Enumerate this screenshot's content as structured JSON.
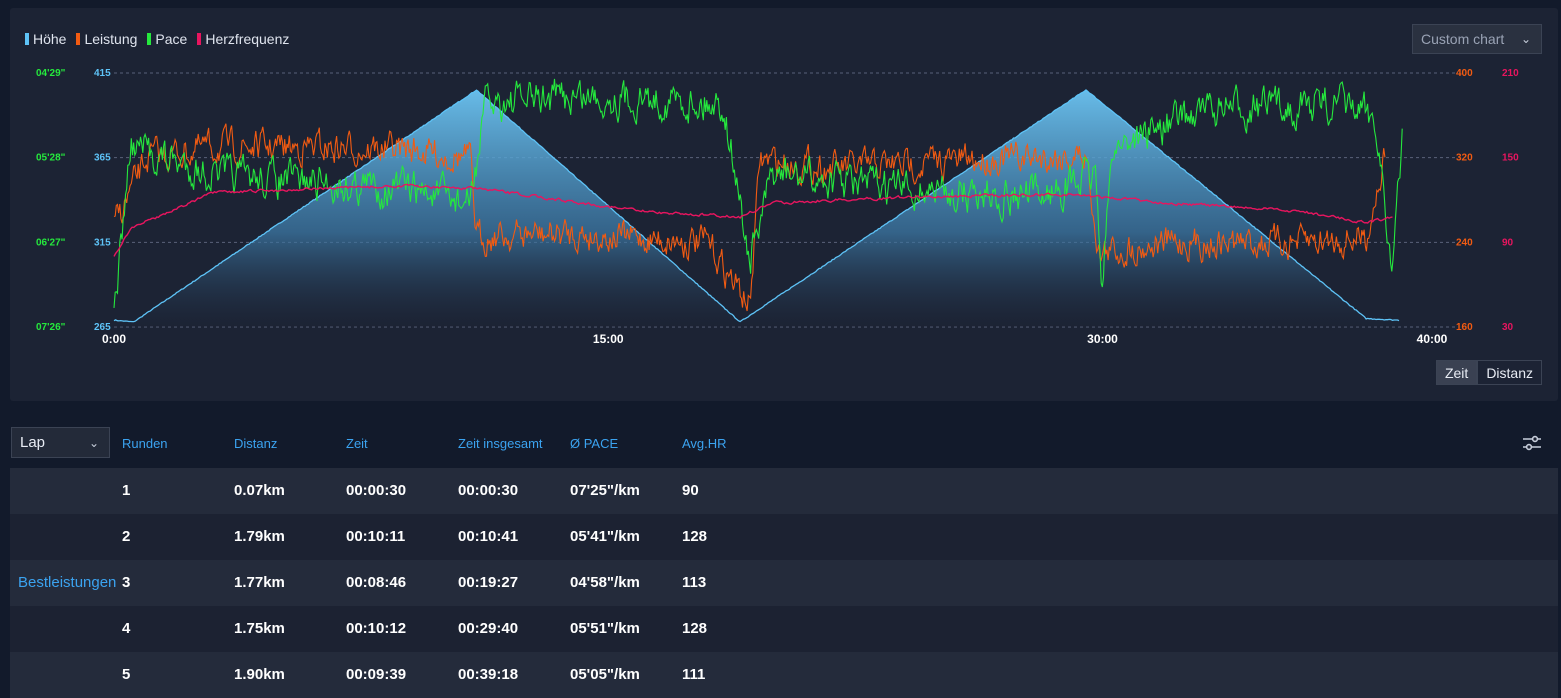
{
  "legend": [
    {
      "label": "Höhe",
      "color": "#5ec3f7"
    },
    {
      "label": "Leistung",
      "color": "#f25b12"
    },
    {
      "label": "Pace",
      "color": "#25e83d"
    },
    {
      "label": "Herzfrequenz",
      "color": "#e8155f"
    }
  ],
  "custom_chart": {
    "label": "Custom chart"
  },
  "toggle": {
    "zeit": "Zeit",
    "distanz": "Distanz",
    "active": "zeit"
  },
  "chart_data": {
    "type": "line",
    "x_ticks": [
      "0:00",
      "15:00",
      "30:00",
      "40:00"
    ],
    "x_range_minutes": [
      0,
      40
    ],
    "axes": {
      "pace": {
        "color": "#25e83d",
        "ticks": [
          "04'29\"",
          "05'28\"",
          "06'27\"",
          "07'26\""
        ]
      },
      "hoehe": {
        "color": "#5ec3f7",
        "ticks": [
          415,
          365,
          315,
          265
        ],
        "range": [
          265,
          415
        ]
      },
      "leistung": {
        "color": "#f25b12",
        "ticks": [
          400,
          320,
          240,
          160
        ],
        "range": [
          160,
          400
        ]
      },
      "herzfrequenz": {
        "color": "#e8155f",
        "ticks": [
          210,
          150,
          90,
          30
        ],
        "range": [
          30,
          210
        ]
      }
    },
    "grid": true,
    "series": [
      {
        "name": "Höhe",
        "color": "#5ec3f7",
        "points": [
          [
            0,
            269
          ],
          [
            0.6,
            268
          ],
          [
            11,
            405
          ],
          [
            19,
            268
          ],
          [
            29.5,
            405
          ],
          [
            38,
            270
          ],
          [
            39,
            269
          ]
        ]
      },
      {
        "name": "Leistung",
        "color": "#f25b12",
        "points": [
          [
            0,
            255
          ],
          [
            1,
            320
          ],
          [
            3,
            330
          ],
          [
            6,
            330
          ],
          [
            9,
            328
          ],
          [
            10.8,
            320
          ],
          [
            11,
            246
          ],
          [
            14,
            248
          ],
          [
            18,
            240
          ],
          [
            19.3,
            180
          ],
          [
            19.6,
            318
          ],
          [
            22,
            310
          ],
          [
            26,
            318
          ],
          [
            29.5,
            322
          ],
          [
            29.9,
            230
          ],
          [
            32,
            240
          ],
          [
            36,
            240
          ],
          [
            38,
            245
          ],
          [
            38.4,
            300
          ],
          [
            38.6,
            330
          ]
        ]
      },
      {
        "name": "Pace",
        "color": "#25e83d",
        "points": [
          [
            0,
            "07'20\""
          ],
          [
            0.5,
            "05'20\""
          ],
          [
            3,
            "05'40\""
          ],
          [
            6,
            "05'45\""
          ],
          [
            9,
            "05'50\""
          ],
          [
            10.8,
            "06'00\""
          ],
          [
            11.3,
            "04'50\""
          ],
          [
            14,
            "04'45\""
          ],
          [
            18.5,
            "04'50\""
          ],
          [
            19.3,
            "06'40\""
          ],
          [
            20,
            "05'40\""
          ],
          [
            24,
            "05'50\""
          ],
          [
            28,
            "05'55\""
          ],
          [
            29.8,
            "05'40\""
          ],
          [
            30,
            "07'00\""
          ],
          [
            30.3,
            "05'20\""
          ],
          [
            33,
            "04'55\""
          ],
          [
            37,
            "04'50\""
          ],
          [
            38.3,
            "05'00\""
          ],
          [
            38.8,
            "06'50\""
          ],
          [
            39.1,
            "05'15\""
          ]
        ]
      },
      {
        "name": "Herzfrequenz",
        "color": "#e8155f",
        "points": [
          [
            0,
            80
          ],
          [
            0.5,
            100
          ],
          [
            3,
            125
          ],
          [
            6,
            128
          ],
          [
            9,
            130
          ],
          [
            11,
            128
          ],
          [
            13,
            122
          ],
          [
            16,
            112
          ],
          [
            19,
            108
          ],
          [
            20,
            118
          ],
          [
            24,
            122
          ],
          [
            29,
            124
          ],
          [
            32,
            118
          ],
          [
            36,
            112
          ],
          [
            38,
            104
          ],
          [
            38.8,
            108
          ]
        ]
      }
    ]
  },
  "table": {
    "lap_select": "Lap",
    "columns": [
      "Runden",
      "Distanz",
      "Zeit",
      "Zeit insgesamt",
      "Ø PACE",
      "Avg.HR"
    ],
    "best_label": "Bestleistungen",
    "best_row": 2,
    "rows": [
      [
        "1",
        "0.07km",
        "00:00:30",
        "00:00:30",
        "07'25\"/km",
        "90"
      ],
      [
        "2",
        "1.79km",
        "00:10:11",
        "00:10:41",
        "05'41\"/km",
        "128"
      ],
      [
        "3",
        "1.77km",
        "00:08:46",
        "00:19:27",
        "04'58\"/km",
        "113"
      ],
      [
        "4",
        "1.75km",
        "00:10:12",
        "00:29:40",
        "05'51\"/km",
        "128"
      ],
      [
        "5",
        "1.90km",
        "00:09:39",
        "00:39:18",
        "05'05\"/km",
        "111"
      ]
    ]
  }
}
